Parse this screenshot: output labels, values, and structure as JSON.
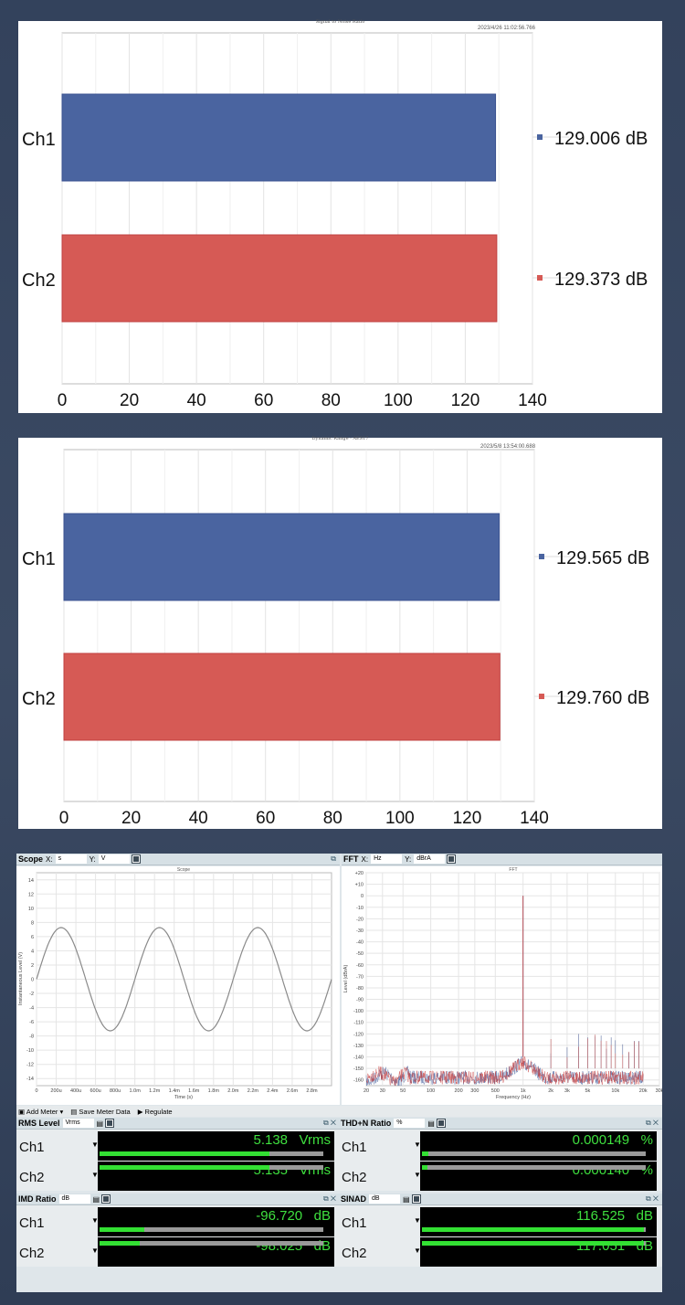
{
  "chart_data": [
    {
      "type": "bar",
      "orientation": "horizontal",
      "title": "Signal to Noise Ratio",
      "timestamp": "2023/4/26 11:02:56.766",
      "categories": [
        "Ch1",
        "Ch2"
      ],
      "values": [
        129.006,
        129.373
      ],
      "value_labels": [
        "129.006 dB",
        "129.373 dB"
      ],
      "colors": [
        "#4a64a0",
        "#d65a55"
      ],
      "xlim": [
        0,
        140
      ],
      "xticks": [
        "0",
        "20",
        "40",
        "60",
        "80",
        "100",
        "120",
        "140"
      ],
      "grid": true,
      "legend": "right"
    },
    {
      "type": "bar",
      "orientation": "horizontal",
      "title": "Dynamic Range - AES17",
      "timestamp": "2023/5/8 13:54:00.688",
      "categories": [
        "Ch1",
        "Ch2"
      ],
      "values": [
        129.565,
        129.76
      ],
      "value_labels": [
        "129.565 dB",
        "129.760 dB"
      ],
      "colors": [
        "#4a64a0",
        "#d65a55"
      ],
      "xlim": [
        0,
        140
      ],
      "xticks": [
        "0",
        "20",
        "40",
        "60",
        "80",
        "100",
        "120",
        "140"
      ],
      "grid": true,
      "legend": "right"
    },
    {
      "type": "line",
      "title": "Scope",
      "xlabel": "Time (s)",
      "ylabel": "Instantaneous Level (V)",
      "xlim": [
        0,
        0.003
      ],
      "ylim": [
        -15,
        15
      ],
      "xticks": [
        "0",
        "200u",
        "400u",
        "600u",
        "800u",
        "1.0m",
        "1.2m",
        "1.4m",
        "1.6m",
        "1.8m",
        "2.0m",
        "2.2m",
        "2.4m",
        "2.6m",
        "2.8m"
      ],
      "yticks": [
        "14",
        "12",
        "10",
        "8",
        "6",
        "4",
        "2",
        "0",
        "-2",
        "-4",
        "-6",
        "-8",
        "-10",
        "-12",
        "-14"
      ],
      "series": [
        {
          "waveform": "sine",
          "amplitude_v": 7.27,
          "frequency_hz": 1000,
          "color": "#8a8a8a"
        }
      ],
      "grid": true
    },
    {
      "type": "line",
      "title": "FFT",
      "xlabel": "Frequency (Hz)",
      "ylabel": "Level (dBrA)",
      "xscale": "log",
      "xlim": [
        20,
        30000
      ],
      "ylim": [
        -165,
        20
      ],
      "xticks": [
        "20",
        "30",
        "50",
        "100",
        "200",
        "300",
        "500",
        "1k",
        "2k",
        "3k",
        "5k",
        "10k",
        "20k",
        "30k"
      ],
      "yticks": [
        "+20",
        "+10",
        "0",
        "-10",
        "-20",
        "-30",
        "-40",
        "-50",
        "-60",
        "-70",
        "-80",
        "-90",
        "-100",
        "-110",
        "-120",
        "-130",
        "-140",
        "-150",
        "-160"
      ],
      "series": [
        {
          "color": "#4a64a0",
          "fundamental_hz": 1000,
          "fundamental_dbra": 0,
          "noise_floor_dbra": -152
        },
        {
          "color": "#c84040",
          "fundamental_hz": 1000,
          "fundamental_dbra": 0,
          "noise_floor_dbra": -152
        }
      ],
      "grid": true
    }
  ],
  "scope_panel": {
    "title": "Scope",
    "x_label": "X:",
    "x_unit": "s",
    "y_label": "Y:",
    "y_unit": "V"
  },
  "fft_panel": {
    "title": "FFT",
    "x_label": "X:",
    "x_unit": "Hz",
    "y_label": "Y:",
    "y_unit": "dBrA"
  },
  "toolbar": {
    "add_meter": "Add Meter",
    "save_meter_data": "Save Meter Data",
    "regulate": "Regulate"
  },
  "meters": [
    {
      "title": "RMS Level",
      "unit_select": "Vrms",
      "rows": [
        {
          "ch": "Ch1",
          "value": "5.138",
          "unit": "Vrms",
          "fill": 0.76
        },
        {
          "ch": "Ch2",
          "value": "5.135",
          "unit": "Vrms",
          "fill": 0.76
        }
      ]
    },
    {
      "title": "THD+N Ratio",
      "unit_select": "%",
      "rows": [
        {
          "ch": "Ch1",
          "value": "0.000149",
          "unit": "%",
          "fill": 0.03
        },
        {
          "ch": "Ch2",
          "value": "0.000140",
          "unit": "%",
          "fill": 0.025
        }
      ]
    },
    {
      "title": "IMD Ratio",
      "unit_select": "dB",
      "rows": [
        {
          "ch": "Ch1",
          "value": "-96.720",
          "unit": "dB",
          "fill": 0.2
        },
        {
          "ch": "Ch2",
          "value": "-98.025",
          "unit": "dB",
          "fill": 0.18
        }
      ]
    },
    {
      "title": "SINAD",
      "unit_select": "dB",
      "rows": [
        {
          "ch": "Ch1",
          "value": "116.525",
          "unit": "dB",
          "fill": 0.99
        },
        {
          "ch": "Ch2",
          "value": "117.051",
          "unit": "dB",
          "fill": 0.99
        }
      ]
    }
  ]
}
